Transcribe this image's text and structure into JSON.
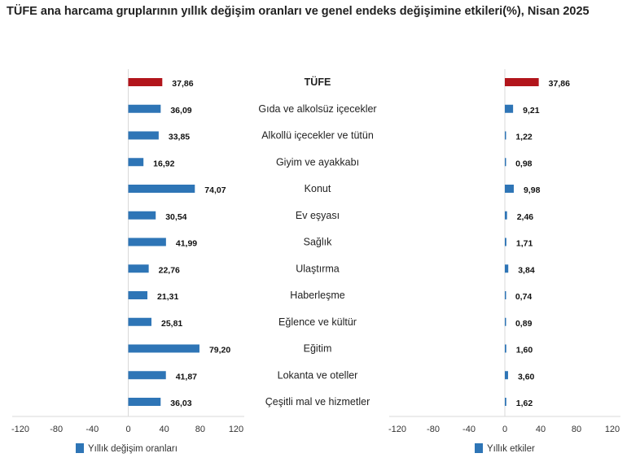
{
  "chart_data": [
    {
      "type": "bar",
      "orientation": "horizontal",
      "title": "TÜFE ana harcama gruplarının yıllık değişim oranları ve genel endeks değişimine etkileri(%), Nisan 2025",
      "categories": [
        "TÜFE",
        "Gıda ve alkolsüz içecekler",
        "Alkollü içecekler ve tütün",
        "Giyim ve ayakkabı",
        "Konut",
        "Ev eşyası",
        "Sağlık",
        "Ulaştırma",
        "Haberleşme",
        "Eğlence ve kültür",
        "Eğitim",
        "Lokanta ve oteller",
        "Çeşitli mal ve hizmetler"
      ],
      "series": [
        {
          "name": "Yıllık değişim oranları",
          "values": [
            37.86,
            36.09,
            33.85,
            16.92,
            74.07,
            30.54,
            41.99,
            22.76,
            21.31,
            25.81,
            79.2,
            41.87,
            36.03
          ],
          "labels": [
            "37,86",
            "36,09",
            "33,85",
            "16,92",
            "74,07",
            "30,54",
            "41,99",
            "22,76",
            "21,31",
            "25,81",
            "79,20",
            "41,87",
            "36,03"
          ]
        }
      ],
      "xlim": [
        -120,
        120
      ],
      "xticks": [
        "-120",
        "-80",
        "-40",
        "0",
        "40",
        "80",
        "120"
      ],
      "legend": "bottom",
      "grid": false
    },
    {
      "type": "bar",
      "orientation": "horizontal",
      "series": [
        {
          "name": "Yıllık etkiler",
          "values": [
            37.86,
            9.21,
            1.22,
            0.98,
            9.98,
            2.46,
            1.71,
            3.84,
            0.74,
            0.89,
            1.6,
            3.6,
            1.62
          ],
          "labels": [
            "37,86",
            "9,21",
            "1,22",
            "0,98",
            "9,98",
            "2,46",
            "1,71",
            "3,84",
            "0,74",
            "0,89",
            "1,60",
            "3,60",
            "1,62"
          ]
        }
      ],
      "xlim": [
        -120,
        120
      ],
      "xticks": [
        "-120",
        "-80",
        "-40",
        "0",
        "40",
        "80",
        "120"
      ],
      "legend": "bottom",
      "grid": false
    }
  ],
  "colors": {
    "highlight": "#b2151b",
    "bar": "#2e75b6",
    "axis": "#d9d9d9"
  }
}
